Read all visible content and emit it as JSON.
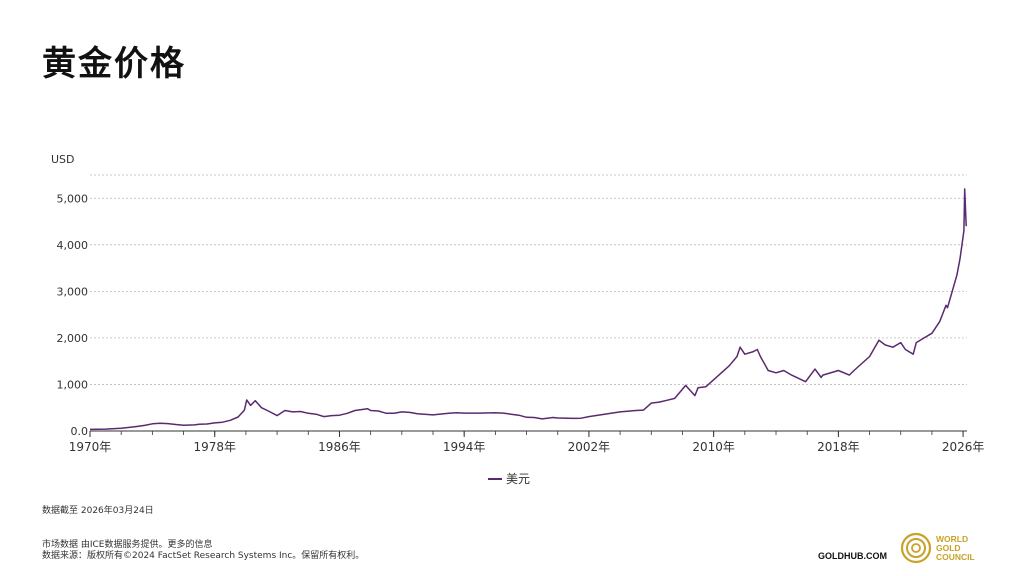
{
  "title": "黄金价格",
  "chart_data": {
    "type": "line",
    "ylabel": "USD",
    "ylim": [
      0,
      5500
    ],
    "yticks": [
      0,
      1000,
      2000,
      3000,
      4000,
      5000
    ],
    "ytick_labels": [
      "0.0",
      "1,000",
      "2,000",
      "3,000",
      "4,000",
      "5,000"
    ],
    "xlim": [
      1970,
      2026.25
    ],
    "xticks": [
      1970,
      1978,
      1986,
      1994,
      2002,
      2010,
      2018,
      2026
    ],
    "xtick_labels": [
      "1970年",
      "1978年",
      "1986年",
      "1994年",
      "2002年",
      "2010年",
      "2018年",
      "2026年"
    ],
    "grid": true,
    "legend_position": "bottom-center",
    "series": [
      {
        "name": "美元",
        "color": "#5b2a6e",
        "x": [
          1970,
          1971,
          1972,
          1973,
          1973.5,
          1974,
          1974.5,
          1975,
          1975.5,
          1976,
          1976.7,
          1977,
          1977.5,
          1978,
          1978.5,
          1979,
          1979.5,
          1979.9,
          1980.05,
          1980.3,
          1980.6,
          1981,
          1981.5,
          1982,
          1982.5,
          1983,
          1983.5,
          1984,
          1984.5,
          1985,
          1985.5,
          1986,
          1986.5,
          1987,
          1987.8,
          1988,
          1988.5,
          1989,
          1989.5,
          1990,
          1990.5,
          1991,
          1992,
          1993,
          1993.5,
          1994,
          1995,
          1996,
          1996.5,
          1997,
          1997.5,
          1998,
          1998.5,
          1999,
          1999.7,
          2000,
          2001,
          2001.5,
          2002,
          2003,
          2004,
          2005,
          2005.5,
          2006,
          2006.5,
          2007,
          2007.5,
          2008,
          2008.2,
          2008.8,
          2009,
          2009.5,
          2010,
          2010.5,
          2011,
          2011.5,
          2011.7,
          2012,
          2012.5,
          2012.8,
          2013,
          2013.5,
          2014,
          2014.5,
          2015,
          2015.9,
          2016.5,
          2016.9,
          2017,
          2018,
          2018.7,
          2019,
          2019.5,
          2020,
          2020.6,
          2021,
          2021.5,
          2022,
          2022.3,
          2022.8,
          2023,
          2023.5,
          2024,
          2024.5,
          2024.9,
          2025,
          2025.3,
          2025.6,
          2025.8,
          2026.05,
          2026.1,
          2026.2
        ],
        "values": [
          35,
          40,
          58,
          97,
          120,
          155,
          165,
          160,
          140,
          125,
          130,
          145,
          150,
          175,
          190,
          230,
          300,
          450,
          665,
          550,
          650,
          500,
          420,
          330,
          440,
          410,
          420,
          380,
          360,
          310,
          330,
          340,
          380,
          440,
          480,
          440,
          430,
          380,
          380,
          410,
          400,
          370,
          345,
          380,
          390,
          385,
          385,
          390,
          385,
          360,
          340,
          295,
          290,
          260,
          290,
          280,
          270,
          275,
          310,
          360,
          410,
          440,
          450,
          600,
          620,
          660,
          700,
          900,
          980,
          760,
          930,
          950,
          1100,
          1250,
          1400,
          1600,
          1800,
          1650,
          1700,
          1750,
          1600,
          1300,
          1250,
          1300,
          1200,
          1060,
          1330,
          1150,
          1200,
          1300,
          1200,
          1300,
          1450,
          1600,
          1950,
          1850,
          1800,
          1900,
          1750,
          1650,
          1900,
          2000,
          2100,
          2350,
          2700,
          2650,
          3000,
          3350,
          3700,
          4300,
          5200,
          4400
        ]
      }
    ]
  },
  "data_asof": "数据截至 2026年03月24日",
  "footnote_line1": "市场数据 由ICE数据服务提供。更多的信息",
  "footnote_line2": "数据来源：版权所有©2024 FactSet Research Systems Inc。保留所有权利。",
  "site": "GOLDHUB.COM",
  "logo_text": [
    "WORLD",
    "GOLD",
    "COUNCIL"
  ],
  "logo_color": "#c9a227"
}
